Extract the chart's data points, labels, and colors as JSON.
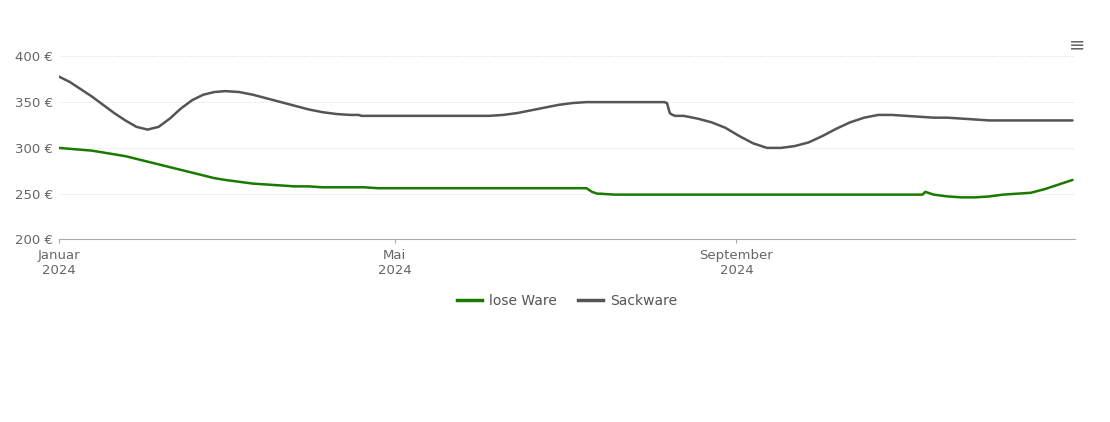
{
  "background_color": "#ffffff",
  "grid_color": "#dddddd",
  "ylim": [
    200,
    410
  ],
  "yticks": [
    200,
    250,
    300,
    350,
    400
  ],
  "ytick_labels": [
    "200 €",
    "250 €",
    "300 €",
    "350 €",
    "400 €"
  ],
  "xlabel_ticks": [
    "Januar\n2024",
    "Mai\n2024",
    "September\n2024"
  ],
  "x_tick_positions": [
    0,
    121,
    244
  ],
  "xlim": [
    0,
    366
  ],
  "lose_ware_color": "#1a7a00",
  "sackware_color": "#555555",
  "lose_ware_label": "lose Ware",
  "sackware_label": "Sackware",
  "lose_ware_x": [
    0,
    4,
    8,
    12,
    16,
    20,
    24,
    28,
    32,
    36,
    40,
    44,
    48,
    52,
    56,
    60,
    65,
    70,
    75,
    80,
    85,
    90,
    95,
    100,
    105,
    110,
    115,
    120,
    125,
    130,
    135,
    140,
    145,
    150,
    155,
    160,
    165,
    170,
    175,
    180,
    185,
    190,
    191,
    192,
    193,
    194,
    195,
    200,
    210,
    220,
    230,
    240,
    245,
    250,
    255,
    260,
    265,
    270,
    275,
    280,
    285,
    290,
    295,
    300,
    305,
    308,
    309,
    310,
    311,
    312,
    315,
    320,
    325,
    330,
    335,
    340,
    345,
    350,
    355,
    360,
    365
  ],
  "lose_ware_y": [
    300,
    299,
    298,
    297,
    295,
    293,
    291,
    288,
    285,
    282,
    279,
    276,
    273,
    270,
    267,
    265,
    263,
    261,
    260,
    259,
    258,
    258,
    257,
    257,
    257,
    257,
    256,
    256,
    256,
    256,
    256,
    256,
    256,
    256,
    256,
    256,
    256,
    256,
    256,
    256,
    256,
    256,
    254,
    252,
    251,
    250,
    250,
    249,
    249,
    249,
    249,
    249,
    249,
    249,
    249,
    249,
    249,
    249,
    249,
    249,
    249,
    249,
    249,
    249,
    249,
    249,
    249,
    249,
    249,
    252,
    249,
    247,
    246,
    246,
    247,
    249,
    250,
    251,
    255,
    260,
    265
  ],
  "sackware_x": [
    0,
    4,
    8,
    12,
    16,
    20,
    24,
    28,
    32,
    36,
    40,
    44,
    48,
    52,
    56,
    60,
    65,
    70,
    75,
    80,
    85,
    90,
    95,
    100,
    105,
    108,
    109,
    110,
    111,
    112,
    115,
    120,
    125,
    130,
    135,
    140,
    145,
    150,
    155,
    160,
    165,
    170,
    175,
    180,
    185,
    190,
    195,
    200,
    205,
    210,
    215,
    218,
    219,
    220,
    221,
    222,
    225,
    230,
    235,
    240,
    245,
    250,
    255,
    260,
    265,
    270,
    275,
    280,
    285,
    290,
    295,
    300,
    305,
    310,
    315,
    320,
    325,
    330,
    335,
    340,
    345,
    350,
    355,
    360,
    365
  ],
  "sackware_y": [
    378,
    372,
    364,
    356,
    347,
    338,
    330,
    323,
    320,
    323,
    332,
    343,
    352,
    358,
    361,
    362,
    361,
    358,
    354,
    350,
    346,
    342,
    339,
    337,
    336,
    336,
    335,
    335,
    335,
    335,
    335,
    335,
    335,
    335,
    335,
    335,
    335,
    335,
    335,
    336,
    338,
    341,
    344,
    347,
    349,
    350,
    350,
    350,
    350,
    350,
    350,
    350,
    349,
    338,
    336,
    335,
    335,
    332,
    328,
    322,
    313,
    305,
    300,
    300,
    302,
    306,
    313,
    321,
    328,
    333,
    336,
    336,
    335,
    334,
    333,
    333,
    332,
    331,
    330,
    330,
    330,
    330,
    330,
    330,
    330
  ]
}
